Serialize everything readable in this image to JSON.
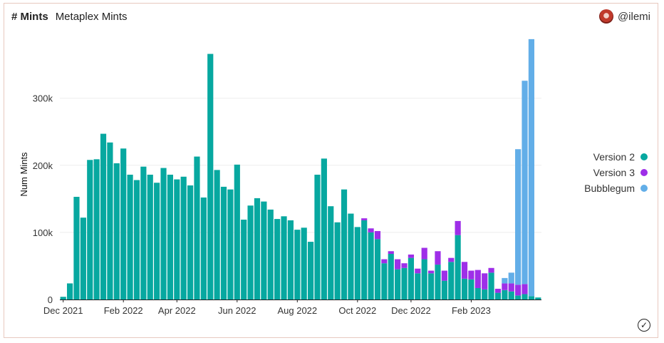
{
  "header": {
    "hash_label": "# Mints",
    "title": "Metaplex Mints"
  },
  "user": {
    "handle": "@ilemi"
  },
  "chart_data": {
    "type": "bar",
    "stacked": true,
    "ylabel": "Num Mints",
    "ylim": [
      0,
      390000
    ],
    "yticks": [
      0,
      100000,
      200000,
      300000
    ],
    "ytick_labels": [
      "0",
      "100k",
      "200k",
      "300k"
    ],
    "x_tick_labels": [
      {
        "index": 0,
        "label": "Dec 2021"
      },
      {
        "index": 9,
        "label": "Feb 2022"
      },
      {
        "index": 17,
        "label": "Apr 2022"
      },
      {
        "index": 26,
        "label": "Jun 2022"
      },
      {
        "index": 35,
        "label": "Aug 2022"
      },
      {
        "index": 44,
        "label": "Oct 2022"
      },
      {
        "index": 52,
        "label": "Dec 2022"
      },
      {
        "index": 61,
        "label": "Feb 2023"
      }
    ],
    "grid": true,
    "legend_position": "right",
    "series": [
      {
        "name": "Version 2",
        "color": "#07a8a0",
        "values": [
          4000,
          24000,
          153000,
          122000,
          208000,
          209000,
          247000,
          234000,
          203000,
          225000,
          186000,
          178000,
          198000,
          186000,
          174000,
          196000,
          186000,
          179000,
          183000,
          170000,
          213000,
          152000,
          366000,
          193000,
          168000,
          164000,
          201000,
          119000,
          140000,
          151000,
          146000,
          134000,
          120000,
          124000,
          118000,
          104000,
          107000,
          86000,
          186000,
          210000,
          139000,
          115000,
          164000,
          128000,
          108000,
          118000,
          100000,
          90000,
          54000,
          68000,
          45000,
          47000,
          62000,
          39000,
          60000,
          39000,
          52000,
          28000,
          56000,
          96000,
          31000,
          30000,
          17000,
          15000,
          40000,
          10000,
          14000,
          12000,
          6000,
          8000,
          5000,
          3000
        ]
      },
      {
        "name": "Version 3",
        "color": "#9e2ee8",
        "values": [
          0,
          0,
          0,
          0,
          0,
          0,
          0,
          0,
          0,
          0,
          0,
          0,
          0,
          0,
          0,
          0,
          0,
          0,
          0,
          0,
          0,
          0,
          0,
          0,
          0,
          0,
          0,
          0,
          0,
          0,
          0,
          0,
          0,
          0,
          0,
          0,
          0,
          0,
          0,
          0,
          0,
          0,
          0,
          0,
          0,
          3000,
          6000,
          12000,
          6000,
          4000,
          15000,
          7000,
          5000,
          7000,
          17000,
          4000,
          20000,
          15000,
          6000,
          21000,
          25000,
          13000,
          27000,
          24000,
          7000,
          6000,
          10000,
          12000,
          16000,
          15000,
          0,
          0
        ]
      },
      {
        "name": "Bubblegum",
        "color": "#62aee8",
        "values": [
          0,
          0,
          0,
          0,
          0,
          0,
          0,
          0,
          0,
          0,
          0,
          0,
          0,
          0,
          0,
          0,
          0,
          0,
          0,
          0,
          0,
          0,
          0,
          0,
          0,
          0,
          0,
          0,
          0,
          0,
          0,
          0,
          0,
          0,
          0,
          0,
          0,
          0,
          0,
          0,
          0,
          0,
          0,
          0,
          0,
          0,
          0,
          0,
          0,
          0,
          0,
          0,
          0,
          0,
          0,
          0,
          0,
          0,
          0,
          0,
          0,
          0,
          0,
          0,
          0,
          0,
          8000,
          16000,
          202000,
          303000,
          383000,
          0
        ]
      }
    ]
  }
}
